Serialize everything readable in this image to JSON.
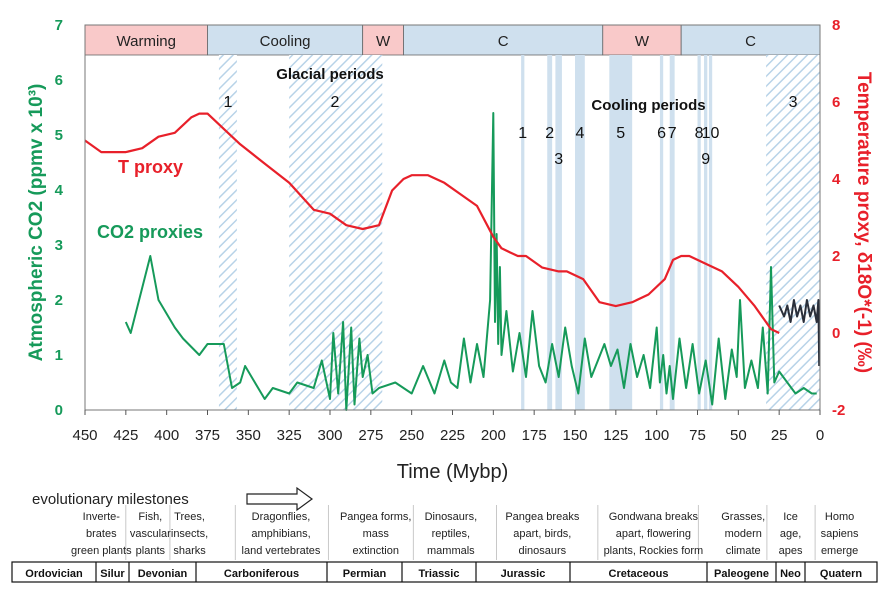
{
  "chart_data": {
    "type": "line",
    "xlabel": "Time (Mybp)",
    "ylabel_left": "Atmospheric CO2 (ppmv x 10³)",
    "ylabel_right": "Temperature proxy, δ18O*(-1) (‰)",
    "xlim": [
      450,
      0
    ],
    "ylim_left": [
      0,
      7
    ],
    "ylim_right": [
      -2,
      8
    ],
    "x_ticks": [
      450,
      425,
      400,
      375,
      350,
      325,
      300,
      275,
      250,
      225,
      200,
      175,
      150,
      125,
      100,
      75,
      50,
      25,
      0
    ],
    "y_ticks_left": [
      0,
      1,
      2,
      3,
      4,
      5,
      6,
      7
    ],
    "y_ticks_right": [
      -2,
      0,
      2,
      4,
      6,
      8
    ],
    "colors": {
      "co2": "#169a5a",
      "temp": "#e8202a",
      "co2_recent": "#2a2f3a",
      "warm": "#f9c9c9",
      "cool": "#cfe0ee",
      "hatch": "#b8d3e8"
    },
    "climate_bands": [
      {
        "label": "Warming",
        "start": 450,
        "end": 375,
        "kind": "warm"
      },
      {
        "label": "Cooling",
        "start": 375,
        "end": 280,
        "kind": "cool"
      },
      {
        "label": "W",
        "start": 280,
        "end": 255,
        "kind": "warm"
      },
      {
        "label": "C",
        "start": 255,
        "end": 133,
        "kind": "cool"
      },
      {
        "label": "W",
        "start": 133,
        "end": 85,
        "kind": "warm"
      },
      {
        "label": "C",
        "start": 85,
        "end": 0,
        "kind": "cool"
      }
    ],
    "glacial_title": "Glacial periods",
    "glacial_periods": [
      {
        "label": "1",
        "start": 368,
        "end": 357
      },
      {
        "label": "2",
        "start": 325,
        "end": 268
      },
      {
        "label": "3",
        "start": 33,
        "end": 0
      }
    ],
    "cooling_title": "Cooling periods",
    "cooling_periods": [
      {
        "label": "1",
        "start": 183,
        "end": 181
      },
      {
        "label": "2",
        "start": 167,
        "end": 164
      },
      {
        "label": "3",
        "start": 162,
        "end": 158
      },
      {
        "label": "4",
        "start": 150,
        "end": 144
      },
      {
        "label": "5",
        "start": 129,
        "end": 115
      },
      {
        "label": "6",
        "start": 98,
        "end": 96
      },
      {
        "label": "7",
        "start": 92,
        "end": 89
      },
      {
        "label": "8",
        "start": 75,
        "end": 73
      },
      {
        "label": "9",
        "start": 71,
        "end": 69
      },
      {
        "label": "10",
        "start": 68,
        "end": 66
      }
    ],
    "temperature_series": {
      "name": "T proxy",
      "x": [
        450,
        440,
        425,
        415,
        405,
        395,
        385,
        380,
        375,
        365,
        355,
        340,
        325,
        310,
        300,
        290,
        280,
        270,
        262,
        255,
        250,
        240,
        230,
        220,
        210,
        200,
        195,
        190,
        185,
        180,
        170,
        160,
        155,
        145,
        135,
        125,
        115,
        105,
        95,
        90,
        85,
        80,
        70,
        60,
        50,
        40,
        30,
        25
      ],
      "y": [
        5.0,
        4.7,
        4.7,
        4.8,
        5.1,
        5.2,
        5.6,
        5.7,
        5.7,
        5.3,
        4.9,
        4.4,
        3.9,
        3.2,
        3.1,
        2.8,
        2.7,
        2.8,
        3.7,
        4.0,
        4.1,
        4.1,
        3.9,
        3.6,
        3.3,
        2.5,
        2.2,
        2.1,
        2.0,
        2.0,
        1.7,
        1.6,
        1.6,
        1.4,
        0.8,
        0.7,
        0.8,
        1.0,
        1.4,
        1.9,
        2.0,
        2.0,
        1.8,
        1.6,
        1.2,
        0.7,
        0.1,
        0.0
      ]
    },
    "co2_series": {
      "name": "CO2 proxies",
      "x": [
        425,
        422,
        410,
        405,
        395,
        390,
        380,
        375,
        365,
        360,
        355,
        352,
        340,
        335,
        325,
        320,
        310,
        305,
        300,
        298,
        295,
        292,
        290,
        287,
        285,
        282,
        280,
        277,
        274,
        270,
        260,
        250,
        243,
        236,
        230,
        226,
        222,
        218,
        214,
        210,
        206,
        202,
        200,
        199,
        198,
        197,
        196,
        195,
        192,
        188,
        184,
        180,
        176,
        172,
        168,
        164,
        160,
        156,
        152,
        148,
        144,
        140,
        136,
        132,
        128,
        124,
        120,
        116,
        112,
        108,
        104,
        100,
        98,
        96,
        94,
        92,
        90,
        86,
        82,
        78,
        74,
        70,
        66,
        62,
        58,
        54,
        51,
        49,
        46,
        42,
        38,
        35,
        32,
        30,
        28,
        25,
        20,
        15,
        10,
        5,
        2
      ],
      "y": [
        1.6,
        1.4,
        2.8,
        2.0,
        1.5,
        1.3,
        1.0,
        1.2,
        1.2,
        0.4,
        0.5,
        0.8,
        0.2,
        0.4,
        0.3,
        0.5,
        0.4,
        0.9,
        0.2,
        1.4,
        0.3,
        1.6,
        0.0,
        1.5,
        0.1,
        1.3,
        0.6,
        1.0,
        0.3,
        0.4,
        0.5,
        0.3,
        0.8,
        0.3,
        0.9,
        0.5,
        0.4,
        1.3,
        0.5,
        1.2,
        0.6,
        2.0,
        5.4,
        1.6,
        3.2,
        1.2,
        2.6,
        1.0,
        1.8,
        0.7,
        1.4,
        0.6,
        1.8,
        0.8,
        0.5,
        1.2,
        0.6,
        1.5,
        0.8,
        0.3,
        1.3,
        0.6,
        0.9,
        1.2,
        0.8,
        1.1,
        0.4,
        1.2,
        0.6,
        1.0,
        0.4,
        1.5,
        0.5,
        1.0,
        0.3,
        0.8,
        0.2,
        1.3,
        0.4,
        1.2,
        0.3,
        0.9,
        0.1,
        1.3,
        0.2,
        1.1,
        0.6,
        2.0,
        0.4,
        0.9,
        0.4,
        1.5,
        0.3,
        2.6,
        0.5,
        0.7,
        0.5,
        0.3,
        0.4,
        0.3,
        0.3
      ]
    },
    "co2_recent_series": {
      "x": [
        25,
        22,
        20,
        18,
        16,
        14,
        12,
        10,
        8,
        6,
        4,
        2,
        1,
        0.5
      ],
      "y": [
        1.9,
        1.7,
        1.9,
        1.6,
        2.0,
        1.7,
        1.9,
        1.6,
        2.0,
        1.7,
        1.9,
        1.6,
        2.0,
        0.8
      ]
    },
    "labels": {
      "t_proxy": "T proxy",
      "co2_proxies": "CO2 proxies",
      "evolutionary_milestones": "evolutionary milestones"
    },
    "milestones": [
      {
        "text": [
          "Inverte-",
          "brates",
          "green plants"
        ],
        "center": 440
      },
      {
        "text": [
          "Fish,",
          "vascular",
          "plants"
        ],
        "center": 410
      },
      {
        "text": [
          "Trees,",
          "insects,",
          "sharks"
        ],
        "center": 386
      },
      {
        "text": [
          "Dragonflies,",
          "amphibians,",
          "land vertebrates"
        ],
        "center": 330
      },
      {
        "text": [
          "Pangea forms,",
          "mass",
          "extinction"
        ],
        "center": 272
      },
      {
        "text": [
          "Dinosaurs,",
          "reptiles,",
          "mammals"
        ],
        "center": 226
      },
      {
        "text": [
          "Pangea breaks",
          "apart, birds,",
          "dinosaurs"
        ],
        "center": 170
      },
      {
        "text": [
          "Gondwana  breaks",
          "apart, flowering",
          "plants, Rockies form"
        ],
        "center": 102
      },
      {
        "text": [
          "Grasses,",
          "modern",
          "climate"
        ],
        "center": 47
      },
      {
        "text": [
          "Ice",
          "age,",
          "apes"
        ],
        "center": 18
      },
      {
        "text": [
          "Homo",
          "sapiens",
          "emerge"
        ],
        "center": -12
      }
    ],
    "geologic_periods": [
      "Ordovician",
      "Silur",
      "Devonian",
      "Carboniferous",
      "Permian",
      "Triassic",
      "Jurassic",
      "Cretaceous",
      "Paleogene",
      "Neo",
      "Quatern"
    ]
  }
}
